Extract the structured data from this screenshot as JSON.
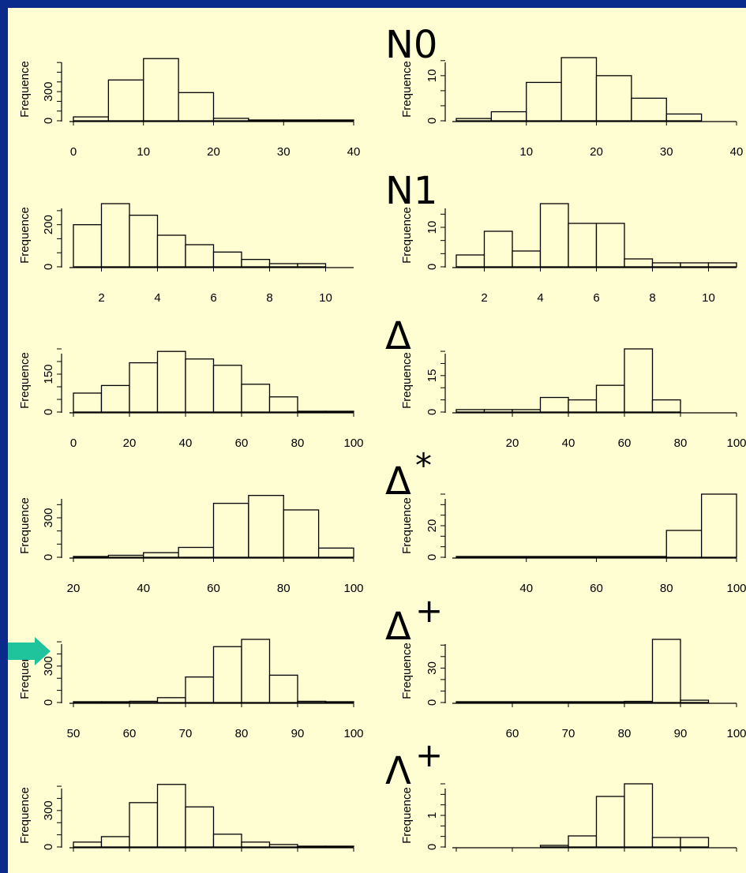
{
  "colors": {
    "slide_bg": "#fffed2",
    "border": "#0a2a8c",
    "arrow": "#1fc49c",
    "bar_fill": "#fffed2"
  },
  "rows": [
    {
      "title": "N0",
      "sup": ""
    },
    {
      "title": "N1",
      "sup": ""
    },
    {
      "title": "Δ",
      "sup": ""
    },
    {
      "title": "Δ",
      "sup": "*"
    },
    {
      "title": "Δ",
      "sup": "+"
    },
    {
      "title": "Λ",
      "sup": "+"
    }
  ],
  "chart_data": [
    {
      "type": "bar",
      "row": 0,
      "side": "left",
      "ylabel": "Frequence",
      "xlim": [
        0,
        40
      ],
      "xticks": [
        "0",
        "10",
        "20",
        "30",
        "40"
      ],
      "yticks": [
        "0",
        "300"
      ],
      "ylim": [
        0,
        650
      ],
      "bin_edges": [
        0,
        5,
        10,
        15,
        20,
        25,
        30,
        35,
        40
      ],
      "values": [
        40,
        420,
        640,
        290,
        25,
        5,
        3,
        2
      ]
    },
    {
      "type": "bar",
      "row": 0,
      "side": "right",
      "ylabel": "Frequence",
      "xlim": [
        0,
        40
      ],
      "xticks": [
        "10",
        "20",
        "30",
        "40"
      ],
      "yticks": [
        "0",
        "10"
      ],
      "ylim": [
        0,
        14
      ],
      "bin_edges": [
        0,
        5,
        10,
        15,
        20,
        25,
        30,
        35
      ],
      "values": [
        0.5,
        2,
        8.5,
        14,
        10,
        5,
        1.5
      ]
    },
    {
      "type": "bar",
      "row": 1,
      "side": "left",
      "ylabel": "Frequence",
      "xlim": [
        1,
        11
      ],
      "xticks": [
        "2",
        "4",
        "6",
        "8",
        "10"
      ],
      "yticks": [
        "0",
        "200"
      ],
      "ylim": [
        0,
        300
      ],
      "bin_edges": [
        1,
        2,
        3,
        4,
        5,
        6,
        7,
        8,
        9,
        10
      ],
      "values": [
        200,
        300,
        245,
        150,
        105,
        70,
        35,
        15,
        15
      ]
    },
    {
      "type": "bar",
      "row": 1,
      "side": "right",
      "ylabel": "Frequence",
      "xlim": [
        1,
        11
      ],
      "xticks": [
        "2",
        "4",
        "6",
        "8",
        "10"
      ],
      "yticks": [
        "0",
        "10"
      ],
      "ylim": [
        0,
        16
      ],
      "bin_edges": [
        1,
        2,
        3,
        4,
        5,
        6,
        7,
        8,
        9,
        10,
        11
      ],
      "values": [
        3,
        9,
        4,
        16,
        11,
        11,
        2,
        1,
        1,
        1
      ]
    },
    {
      "type": "bar",
      "row": 2,
      "side": "left",
      "ylabel": "Frequence",
      "xlim": [
        0,
        100
      ],
      "xticks": [
        "0",
        "20",
        "40",
        "60",
        "80",
        "100"
      ],
      "yticks": [
        "0",
        "150"
      ],
      "ylim": [
        0,
        250
      ],
      "bin_edges": [
        0,
        10,
        20,
        30,
        40,
        50,
        60,
        70,
        80,
        90,
        100
      ],
      "values": [
        75,
        105,
        195,
        240,
        210,
        185,
        110,
        60,
        0,
        0
      ]
    },
    {
      "type": "bar",
      "row": 2,
      "side": "right",
      "ylabel": "Frequence",
      "xlim": [
        0,
        100
      ],
      "xticks": [
        "20",
        "40",
        "60",
        "80",
        "100"
      ],
      "yticks": [
        "0",
        "15"
      ],
      "ylim": [
        0,
        26
      ],
      "bin_edges": [
        0,
        10,
        20,
        30,
        40,
        50,
        60,
        70,
        80
      ],
      "values": [
        1,
        1,
        1,
        6,
        5,
        11,
        26,
        5
      ]
    },
    {
      "type": "bar",
      "row": 3,
      "side": "left",
      "ylabel": "Frequence",
      "xlim": [
        20,
        100
      ],
      "xticks": [
        "20",
        "40",
        "60",
        "80",
        "100"
      ],
      "yticks": [
        "0",
        "300"
      ],
      "ylim": [
        0,
        480
      ],
      "bin_edges": [
        20,
        30,
        40,
        50,
        60,
        70,
        80,
        90,
        100
      ],
      "values": [
        5,
        15,
        35,
        75,
        410,
        470,
        360,
        70
      ]
    },
    {
      "type": "bar",
      "row": 3,
      "side": "right",
      "ylabel": "Frequence",
      "xlim": [
        20,
        100
      ],
      "xticks": [
        "40",
        "60",
        "80",
        "100"
      ],
      "yticks": [
        "0",
        "20"
      ],
      "ylim": [
        0,
        40
      ],
      "bin_edges": [
        20,
        80,
        90,
        100
      ],
      "values": [
        0,
        17,
        40
      ]
    },
    {
      "type": "bar",
      "row": 4,
      "side": "left",
      "ylabel": "Frequence",
      "xlim": [
        50,
        100
      ],
      "xticks": [
        "50",
        "60",
        "70",
        "80",
        "90",
        "100"
      ],
      "yticks": [
        "0",
        "300"
      ],
      "ylim": [
        0,
        520
      ],
      "bin_edges": [
        50,
        55,
        60,
        65,
        70,
        75,
        80,
        85,
        90,
        95,
        100
      ],
      "values": [
        0,
        5,
        10,
        40,
        210,
        460,
        520,
        225,
        10,
        0
      ]
    },
    {
      "type": "bar",
      "row": 4,
      "side": "right",
      "ylabel": "Frequence",
      "xlim": [
        50,
        100
      ],
      "xticks": [
        "60",
        "70",
        "80",
        "90",
        "100"
      ],
      "yticks": [
        "0",
        "30"
      ],
      "ylim": [
        0,
        55
      ],
      "bin_edges": [
        50,
        80,
        85,
        90,
        95
      ],
      "values": [
        0,
        1,
        55,
        2
      ]
    },
    {
      "type": "bar",
      "row": 5,
      "side": "left",
      "ylabel": "Frequence",
      "xlim": [
        0,
        100
      ],
      "xticks": [],
      "yticks": [
        "0",
        "300"
      ],
      "ylim": [
        0,
        520
      ],
      "bin_edges": [
        0,
        10,
        20,
        30,
        40,
        50,
        60,
        70,
        80,
        90,
        100
      ],
      "values": [
        40,
        85,
        365,
        515,
        330,
        105,
        40,
        20,
        0,
        0
      ]
    },
    {
      "type": "bar",
      "row": 5,
      "side": "right",
      "ylabel": "Frequence",
      "xlim": [
        0,
        100
      ],
      "xticks": [],
      "yticks": [
        "0",
        "1"
      ],
      "ylim": [
        0,
        2
      ],
      "bin_edges": [
        30,
        40,
        50,
        60,
        70,
        80,
        90
      ],
      "values": [
        0.05,
        0.35,
        1.6,
        2.0,
        0.3,
        0.3
      ]
    }
  ]
}
